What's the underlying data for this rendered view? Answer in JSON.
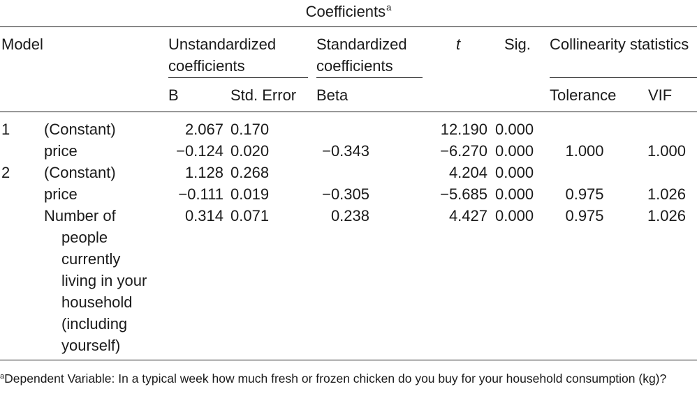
{
  "table": {
    "title": "Coefficients",
    "title_marker": "a",
    "headers": {
      "model": "Model",
      "unstd_line1": "Unstandardized",
      "unstd_line2": "coefficients",
      "std_line1": "Standardized",
      "std_line2": "coefficients",
      "t": "t",
      "sig": "Sig.",
      "collinearity": "Collinearity statistics",
      "b": "B",
      "std_error": "Std. Error",
      "beta": "Beta",
      "tolerance": "Tolerance",
      "vif": "VIF"
    },
    "rows": [
      {
        "model": "1",
        "predictor": "(Constant)",
        "b": "2.067",
        "se": "0.170",
        "beta": "",
        "t": "12.190",
        "sig": "0.000",
        "tol": "",
        "vif": ""
      },
      {
        "model": "",
        "predictor": "price",
        "b": "−0.124",
        "se": "0.020",
        "beta": "−0.343",
        "t": "−6.270",
        "sig": "0.000",
        "tol": "1.000",
        "vif": "1.000"
      },
      {
        "model": "2",
        "predictor": "(Constant)",
        "b": "1.128",
        "se": "0.268",
        "beta": "",
        "t": "4.204",
        "sig": "0.000",
        "tol": "",
        "vif": ""
      },
      {
        "model": "",
        "predictor": "price",
        "b": "−0.111",
        "se": "0.019",
        "beta": "−0.305",
        "t": "−5.685",
        "sig": "0.000",
        "tol": "0.975",
        "vif": "1.026"
      },
      {
        "model": "",
        "predictor_lines": [
          "Number of",
          "people",
          "currently",
          "living in your",
          "household",
          "(including",
          "yourself)"
        ],
        "b": "0.314",
        "se": "0.071",
        "beta": "0.238",
        "t": "4.427",
        "sig": "0.000",
        "tol": "0.975",
        "vif": "1.026"
      }
    ],
    "footnote_marker": "a",
    "footnote": "Dependent Variable: In a typical week how much fresh or frozen chicken do you buy for your household consumption (kg)?"
  }
}
